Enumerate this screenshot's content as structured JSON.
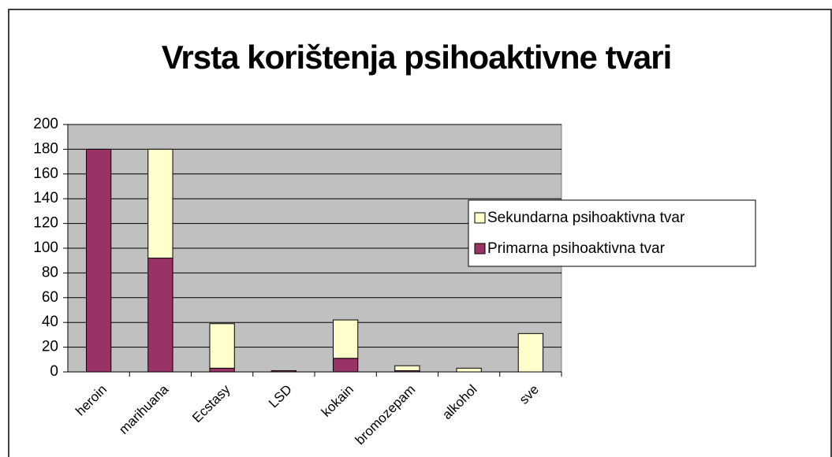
{
  "chart_data": {
    "type": "bar",
    "stacked": true,
    "title": "Vrsta korištenja psihoaktivne tvari",
    "categories": [
      "heroin",
      "marihuana",
      "Ecstasy",
      "LSD",
      "kokain",
      "bromozepam",
      "alkohol",
      "sve"
    ],
    "series": [
      {
        "name": "Primarna psihoaktivna tvar",
        "color": "#993366",
        "values": [
          180,
          92,
          3,
          1,
          11,
          1,
          0,
          0
        ]
      },
      {
        "name": "Sekundarna psihoaktivna tvar",
        "color": "#FFFFCC",
        "values": [
          0,
          88,
          36,
          0,
          31,
          4,
          3,
          31
        ]
      }
    ],
    "ylim": [
      0,
      200
    ],
    "yticks": [
      0,
      20,
      40,
      60,
      80,
      100,
      120,
      140,
      160,
      180,
      200
    ],
    "grid": true,
    "legend": "right"
  }
}
